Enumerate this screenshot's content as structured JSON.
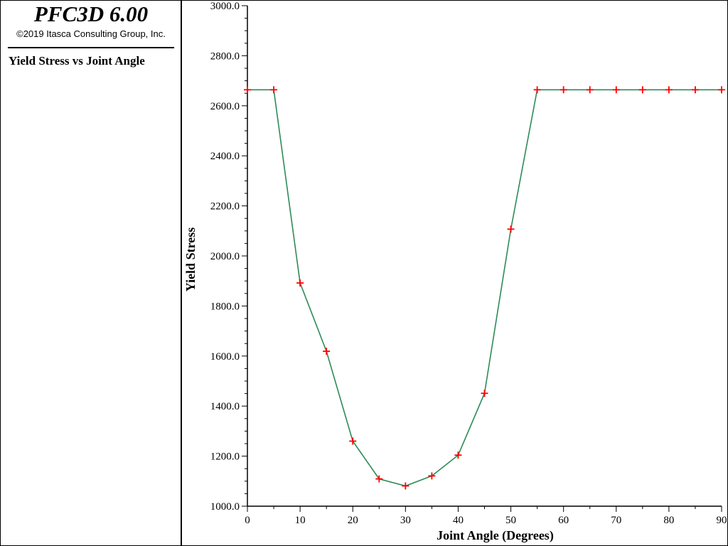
{
  "app": {
    "title": "PFC3D 6.00",
    "copyright": "©2019 Itasca Consulting Group, Inc."
  },
  "legend": {
    "plot_title": "Yield Stress vs Joint Angle"
  },
  "colors": {
    "line": "#2e8b57",
    "marker": "#ff0000",
    "axis": "#000000"
  },
  "chart_data": {
    "type": "line",
    "title": "",
    "xlabel": "Joint Angle (Degrees)",
    "ylabel": "Yield Stress",
    "xlim": [
      0,
      90
    ],
    "ylim": [
      1000,
      3000
    ],
    "x_ticks": [
      0,
      10,
      20,
      30,
      40,
      50,
      60,
      70,
      80,
      90
    ],
    "x_tick_labels": [
      "0",
      "10",
      "20",
      "30",
      "40",
      "50",
      "60",
      "70",
      "80",
      "90"
    ],
    "y_ticks": [
      1000,
      1200,
      1400,
      1600,
      1800,
      2000,
      2200,
      2400,
      2600,
      2800,
      3000
    ],
    "y_tick_labels": [
      "1000.0",
      "1200.0",
      "1400.0",
      "1600.0",
      "1800.0",
      "2000.0",
      "2200.0",
      "2400.0",
      "2600.0",
      "2800.0",
      "3000.0"
    ],
    "grid": false,
    "marker": "plus",
    "x": [
      0,
      5,
      10,
      15,
      20,
      25,
      30,
      35,
      40,
      45,
      50,
      55,
      60,
      65,
      70,
      75,
      80,
      85,
      90
    ],
    "y": [
      2664,
      2664,
      1892,
      1619,
      1260,
      1109,
      1081,
      1121,
      1204,
      1451,
      2107,
      2664,
      2664,
      2664,
      2664,
      2664,
      2664,
      2664,
      2664
    ]
  }
}
